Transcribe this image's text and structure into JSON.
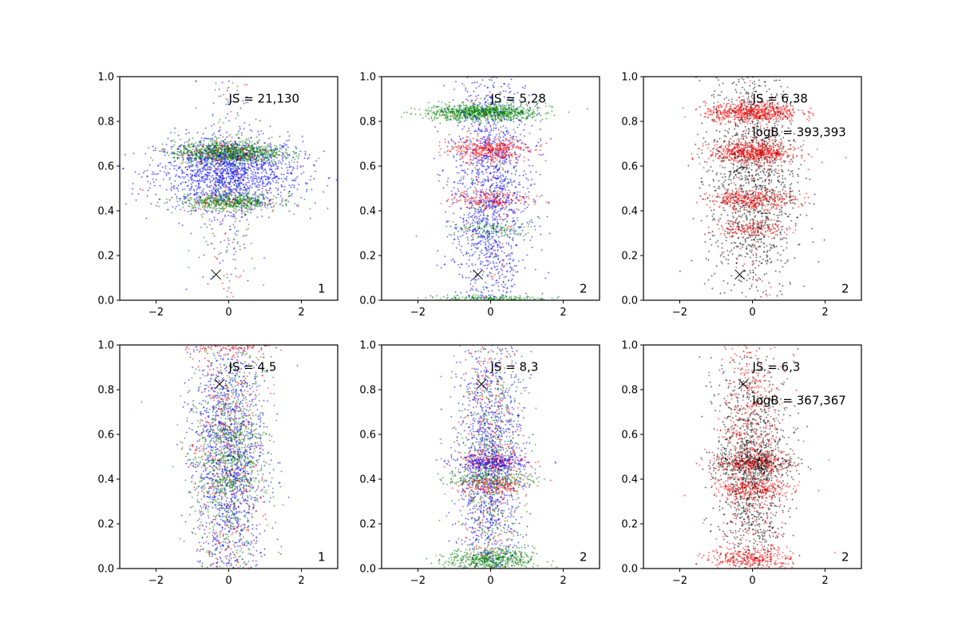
{
  "chart_data": [
    {
      "type": "scatter",
      "xlim": [
        -3,
        3
      ],
      "ylim": [
        0,
        1
      ],
      "xticks": [
        "−2",
        "0",
        "2"
      ],
      "yticks": [
        "0.0",
        "0.2",
        "0.4",
        "0.6",
        "0.8",
        "1.0"
      ],
      "annotations": [
        "JS = 21,130"
      ],
      "corner_label": "1",
      "marker_x": [
        -0.35,
        0.115
      ],
      "series": [
        {
          "name": "blue",
          "color": "#0000ff",
          "clusters": [
            {
              "x": 0,
              "sx": 1.0,
              "y": 0.57,
              "sy": 0.08,
              "n": 1500
            },
            {
              "x": 0,
              "sx": 0.35,
              "y": 0.5,
              "sy": 0.3,
              "n": 150
            }
          ]
        },
        {
          "name": "red",
          "color": "#ff0000",
          "clusters": [
            {
              "x": 0,
              "sx": 0.7,
              "y": 0.66,
              "sy": 0.03,
              "n": 150
            },
            {
              "x": 0,
              "sx": 0.7,
              "y": 0.44,
              "sy": 0.025,
              "n": 80
            },
            {
              "x": 0,
              "sx": 0.4,
              "y": 0.5,
              "sy": 0.3,
              "n": 80
            }
          ]
        },
        {
          "name": "green",
          "color": "#008000",
          "clusters": [
            {
              "x": 0,
              "sx": 0.75,
              "y": 0.66,
              "sy": 0.025,
              "n": 900
            },
            {
              "x": 0,
              "sx": 0.7,
              "y": 0.44,
              "sy": 0.018,
              "n": 450
            },
            {
              "x": 0,
              "sx": 0.4,
              "y": 0.5,
              "sy": 0.3,
              "n": 150
            }
          ]
        }
      ]
    },
    {
      "type": "scatter",
      "xlim": [
        -3,
        3
      ],
      "ylim": [
        0,
        1
      ],
      "xticks": [
        "−2",
        "0",
        "2"
      ],
      "yticks": [
        "0.0",
        "0.2",
        "0.4",
        "0.6",
        "0.8",
        "1.0"
      ],
      "annotations": [
        "JS = 5,28"
      ],
      "corner_label": "2",
      "marker_x": [
        -0.35,
        0.115
      ],
      "series": [
        {
          "name": "blue",
          "color": "#0000ff",
          "clusters": [
            {
              "x": 0,
              "sx": 0.55,
              "y": 0.5,
              "sy": 0.3,
              "n": 1500
            }
          ]
        },
        {
          "name": "red",
          "color": "#ff0000",
          "clusters": [
            {
              "x": 0,
              "sx": 0.55,
              "y": 0.67,
              "sy": 0.025,
              "n": 400
            },
            {
              "x": 0,
              "sx": 0.55,
              "y": 0.45,
              "sy": 0.02,
              "n": 200
            },
            {
              "x": 0,
              "sx": 0.4,
              "y": 0.5,
              "sy": 0.3,
              "n": 100
            }
          ]
        },
        {
          "name": "green",
          "color": "#008000",
          "clusters": [
            {
              "x": -0.2,
              "sx": 0.75,
              "y": 0.84,
              "sy": 0.018,
              "n": 900
            },
            {
              "x": 0,
              "sx": 0.6,
              "y": 0.32,
              "sy": 0.02,
              "n": 120
            },
            {
              "x": 0,
              "sx": 0.8,
              "y": 0.005,
              "sy": 0.008,
              "n": 200
            },
            {
              "x": 0,
              "sx": 0.4,
              "y": 0.5,
              "sy": 0.3,
              "n": 100
            }
          ]
        }
      ]
    },
    {
      "type": "scatter",
      "xlim": [
        -3,
        3
      ],
      "ylim": [
        0,
        1
      ],
      "xticks": [
        "−2",
        "0",
        "2"
      ],
      "yticks": [
        "0.0",
        "0.2",
        "0.4",
        "0.6",
        "0.8",
        "1.0"
      ],
      "annotations": [
        "JS = 6,38",
        "logB = 393,393"
      ],
      "corner_label": "2",
      "marker_x": [
        -0.35,
        0.115
      ],
      "series": [
        {
          "name": "black",
          "color": "#000000",
          "clusters": [
            {
              "x": 0,
              "sx": 0.6,
              "y": 0.55,
              "sy": 0.28,
              "n": 1400
            }
          ]
        },
        {
          "name": "red",
          "color": "#ff0000",
          "clusters": [
            {
              "x": 0,
              "sx": 0.65,
              "y": 0.84,
              "sy": 0.022,
              "n": 600
            },
            {
              "x": 0,
              "sx": 0.6,
              "y": 0.66,
              "sy": 0.025,
              "n": 600
            },
            {
              "x": 0,
              "sx": 0.6,
              "y": 0.45,
              "sy": 0.02,
              "n": 350
            },
            {
              "x": 0,
              "sx": 0.5,
              "y": 0.32,
              "sy": 0.02,
              "n": 150
            },
            {
              "x": 0,
              "sx": 0.4,
              "y": 0.55,
              "sy": 0.3,
              "n": 150
            }
          ]
        }
      ]
    },
    {
      "type": "scatter",
      "xlim": [
        -3,
        3
      ],
      "ylim": [
        0,
        1
      ],
      "xticks": [
        "−2",
        "0",
        "2"
      ],
      "yticks": [
        "0.0",
        "0.2",
        "0.4",
        "0.6",
        "0.8",
        "1.0"
      ],
      "annotations": [
        "JS = 4,5"
      ],
      "corner_label": "1",
      "marker_x": [
        -0.25,
        0.825
      ],
      "series": [
        {
          "name": "blue",
          "color": "#0000ff",
          "clusters": [
            {
              "x": 0,
              "sx": 0.5,
              "y": 0.5,
              "sy": 0.32,
              "n": 1400
            }
          ]
        },
        {
          "name": "red",
          "color": "#ff0000",
          "clusters": [
            {
              "x": 0,
              "sx": 0.5,
              "y": 0.5,
              "sy": 0.32,
              "n": 500
            },
            {
              "x": 0,
              "sx": 0.6,
              "y": 0.99,
              "sy": 0.01,
              "n": 80
            }
          ]
        },
        {
          "name": "green",
          "color": "#008000",
          "clusters": [
            {
              "x": 0,
              "sx": 0.5,
              "y": 0.5,
              "sy": 0.32,
              "n": 700
            },
            {
              "x": 0,
              "sx": 0.5,
              "y": 0.6,
              "sy": 0.02,
              "n": 100
            },
            {
              "x": 0,
              "sx": 0.5,
              "y": 0.49,
              "sy": 0.02,
              "n": 120
            },
            {
              "x": 0,
              "sx": 0.5,
              "y": 0.39,
              "sy": 0.02,
              "n": 100
            }
          ]
        }
      ]
    },
    {
      "type": "scatter",
      "xlim": [
        -3,
        3
      ],
      "ylim": [
        0,
        1
      ],
      "xticks": [
        "−2",
        "0",
        "2"
      ],
      "yticks": [
        "0.0",
        "0.2",
        "0.4",
        "0.6",
        "0.8",
        "1.0"
      ],
      "annotations": [
        "JS = 8,3"
      ],
      "corner_label": "2",
      "marker_x": [
        -0.25,
        0.825
      ],
      "series": [
        {
          "name": "blue",
          "color": "#0000ff",
          "clusters": [
            {
              "x": 0,
              "sx": 0.45,
              "y": 0.45,
              "sy": 0.3,
              "n": 1200
            },
            {
              "x": 0,
              "sx": 0.5,
              "y": 0.47,
              "sy": 0.02,
              "n": 250
            }
          ]
        },
        {
          "name": "red",
          "color": "#ff0000",
          "clusters": [
            {
              "x": 0,
              "sx": 0.45,
              "y": 0.5,
              "sy": 0.3,
              "n": 400
            },
            {
              "x": 0,
              "sx": 0.5,
              "y": 0.48,
              "sy": 0.02,
              "n": 150
            },
            {
              "x": 0,
              "sx": 0.5,
              "y": 0.37,
              "sy": 0.02,
              "n": 150
            }
          ]
        },
        {
          "name": "green",
          "color": "#008000",
          "clusters": [
            {
              "x": 0,
              "sx": 0.45,
              "y": 0.45,
              "sy": 0.3,
              "n": 500
            },
            {
              "x": 0,
              "sx": 0.6,
              "y": 0.4,
              "sy": 0.02,
              "n": 200
            },
            {
              "x": 0,
              "sx": 0.6,
              "y": 0.04,
              "sy": 0.025,
              "n": 500
            }
          ]
        }
      ]
    },
    {
      "type": "scatter",
      "xlim": [
        -3,
        3
      ],
      "ylim": [
        0,
        1
      ],
      "xticks": [
        "−2",
        "0",
        "2"
      ],
      "yticks": [
        "0.0",
        "0.2",
        "0.4",
        "0.6",
        "0.8",
        "1.0"
      ],
      "annotations": [
        "JS = 6,3",
        "logB = 367,367"
      ],
      "corner_label": "2",
      "marker_x": [
        -0.25,
        0.825
      ],
      "series": [
        {
          "name": "black",
          "color": "#000000",
          "clusters": [
            {
              "x": 0,
              "sx": 0.5,
              "y": 0.45,
              "sy": 0.25,
              "n": 1100
            },
            {
              "x": 0,
              "sx": 0.55,
              "y": 0.47,
              "sy": 0.03,
              "n": 300
            }
          ]
        },
        {
          "name": "red",
          "color": "#ff0000",
          "clusters": [
            {
              "x": 0,
              "sx": 0.45,
              "y": 0.55,
              "sy": 0.3,
              "n": 700
            },
            {
              "x": 0,
              "sx": 0.55,
              "y": 0.47,
              "sy": 0.02,
              "n": 250
            },
            {
              "x": 0,
              "sx": 0.55,
              "y": 0.36,
              "sy": 0.02,
              "n": 250
            },
            {
              "x": 0,
              "sx": 0.6,
              "y": 0.04,
              "sy": 0.025,
              "n": 300
            }
          ]
        }
      ]
    }
  ]
}
